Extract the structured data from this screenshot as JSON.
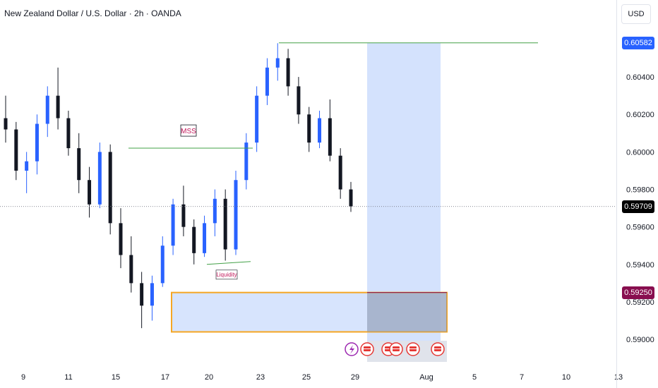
{
  "header": {
    "title": "New Zealand Dollar / U.S. Dollar · 2h · OANDA",
    "currency": "USD"
  },
  "price_axis": {
    "ticks": [
      "0.60400",
      "0.60200",
      "0.60000",
      "0.59800",
      "0.59600",
      "0.59400",
      "0.59200",
      "0.59000"
    ],
    "badges": [
      {
        "label": "0.60582",
        "value": 0.60582,
        "color": "#2962ff"
      },
      {
        "label": "0.59709",
        "value": 0.59709,
        "color": "#000000"
      },
      {
        "label": "0.59250",
        "value": 0.5925,
        "color": "#880e4f"
      }
    ]
  },
  "time_axis": {
    "labels": [
      "9",
      "11",
      "15",
      "17",
      "20",
      "23",
      "25",
      "29",
      "Aug",
      "5",
      "7",
      "10",
      "13"
    ]
  },
  "annotations": {
    "mss": "MSS",
    "liquidity": "Liquidity"
  },
  "colors": {
    "up": "#2962ff",
    "down": "#131722",
    "zone_fill": "#c9dbfc",
    "zone_border": "#f5a623",
    "level_line": "#43a047",
    "projection_fill": "#c9dbfc",
    "event_icon": "#e53935",
    "lightning_icon": "#9c27b0"
  },
  "chart_data": {
    "type": "candlestick",
    "title": "New Zealand Dollar / U.S. Dollar · 2h · OANDA",
    "ylabel": "USD",
    "ylim": [
      0.5891,
      0.6066
    ],
    "ohlc": [
      {
        "date": "Jul 8",
        "o": 0.6018,
        "h": 0.603,
        "l": 0.6005,
        "c": 0.6012
      },
      {
        "date": "Jul 9",
        "o": 0.6012,
        "h": 0.6016,
        "l": 0.5985,
        "c": 0.599
      },
      {
        "date": "Jul 9",
        "o": 0.599,
        "h": 0.6,
        "l": 0.5978,
        "c": 0.5995
      },
      {
        "date": "Jul 10",
        "o": 0.5995,
        "h": 0.602,
        "l": 0.5988,
        "c": 0.6015
      },
      {
        "date": "Jul 10",
        "o": 0.6015,
        "h": 0.6035,
        "l": 0.6008,
        "c": 0.603
      },
      {
        "date": "Jul 11",
        "o": 0.603,
        "h": 0.6045,
        "l": 0.6012,
        "c": 0.6018
      },
      {
        "date": "Jul 11",
        "o": 0.6018,
        "h": 0.6022,
        "l": 0.5998,
        "c": 0.6002
      },
      {
        "date": "Jul 12",
        "o": 0.6002,
        "h": 0.601,
        "l": 0.5978,
        "c": 0.5985
      },
      {
        "date": "Jul 12",
        "o": 0.5985,
        "h": 0.5992,
        "l": 0.5965,
        "c": 0.5972
      },
      {
        "date": "Jul 15",
        "o": 0.5972,
        "h": 0.6005,
        "l": 0.597,
        "c": 0.6
      },
      {
        "date": "Jul 15",
        "o": 0.6,
        "h": 0.6004,
        "l": 0.5956,
        "c": 0.5962
      },
      {
        "date": "Jul 16",
        "o": 0.5962,
        "h": 0.597,
        "l": 0.5938,
        "c": 0.5945
      },
      {
        "date": "Jul 16",
        "o": 0.5945,
        "h": 0.5955,
        "l": 0.5925,
        "c": 0.593
      },
      {
        "date": "Jul 17",
        "o": 0.593,
        "h": 0.5936,
        "l": 0.5906,
        "c": 0.5918
      },
      {
        "date": "Jul 17",
        "o": 0.5918,
        "h": 0.5934,
        "l": 0.591,
        "c": 0.593
      },
      {
        "date": "Jul 18",
        "o": 0.593,
        "h": 0.5955,
        "l": 0.5928,
        "c": 0.595
      },
      {
        "date": "Jul 18",
        "o": 0.595,
        "h": 0.5975,
        "l": 0.5945,
        "c": 0.5972
      },
      {
        "date": "Jul 19",
        "o": 0.5972,
        "h": 0.5982,
        "l": 0.5955,
        "c": 0.596
      },
      {
        "date": "Jul 19",
        "o": 0.596,
        "h": 0.5964,
        "l": 0.594,
        "c": 0.5946
      },
      {
        "date": "Jul 22",
        "o": 0.5946,
        "h": 0.5966,
        "l": 0.5944,
        "c": 0.5962
      },
      {
        "date": "Jul 22",
        "o": 0.5962,
        "h": 0.598,
        "l": 0.5955,
        "c": 0.5975
      },
      {
        "date": "Jul 23",
        "o": 0.5975,
        "h": 0.598,
        "l": 0.5942,
        "c": 0.5948
      },
      {
        "date": "Jul 23",
        "o": 0.5948,
        "h": 0.599,
        "l": 0.5945,
        "c": 0.5985
      },
      {
        "date": "Jul 24",
        "o": 0.5985,
        "h": 0.601,
        "l": 0.598,
        "c": 0.6005
      },
      {
        "date": "Jul 24",
        "o": 0.6005,
        "h": 0.6035,
        "l": 0.6,
        "c": 0.603
      },
      {
        "date": "Jul 25",
        "o": 0.603,
        "h": 0.605,
        "l": 0.6025,
        "c": 0.6045
      },
      {
        "date": "Jul 25",
        "o": 0.6045,
        "h": 0.6058,
        "l": 0.6038,
        "c": 0.605
      },
      {
        "date": "Jul 26",
        "o": 0.605,
        "h": 0.6055,
        "l": 0.603,
        "c": 0.6035
      },
      {
        "date": "Jul 26",
        "o": 0.6035,
        "h": 0.604,
        "l": 0.6015,
        "c": 0.602
      },
      {
        "date": "Jul 27",
        "o": 0.602,
        "h": 0.6024,
        "l": 0.6,
        "c": 0.6005
      },
      {
        "date": "Jul 27",
        "o": 0.6005,
        "h": 0.6022,
        "l": 0.6002,
        "c": 0.6018
      },
      {
        "date": "Jul 28",
        "o": 0.6018,
        "h": 0.6028,
        "l": 0.5995,
        "c": 0.5998
      },
      {
        "date": "Jul 28",
        "o": 0.5998,
        "h": 0.6002,
        "l": 0.5975,
        "c": 0.598
      },
      {
        "date": "Jul 29",
        "o": 0.598,
        "h": 0.5984,
        "l": 0.5968,
        "c": 0.5971
      }
    ],
    "levels": [
      {
        "label": "MSS",
        "value": 0.6002
      },
      {
        "label": "Liquidity",
        "value": 0.594
      },
      {
        "label": "top",
        "value": 0.60582
      }
    ],
    "zone": {
      "from": 0.5925,
      "to": 0.5904
    },
    "current_price": 0.59709
  }
}
